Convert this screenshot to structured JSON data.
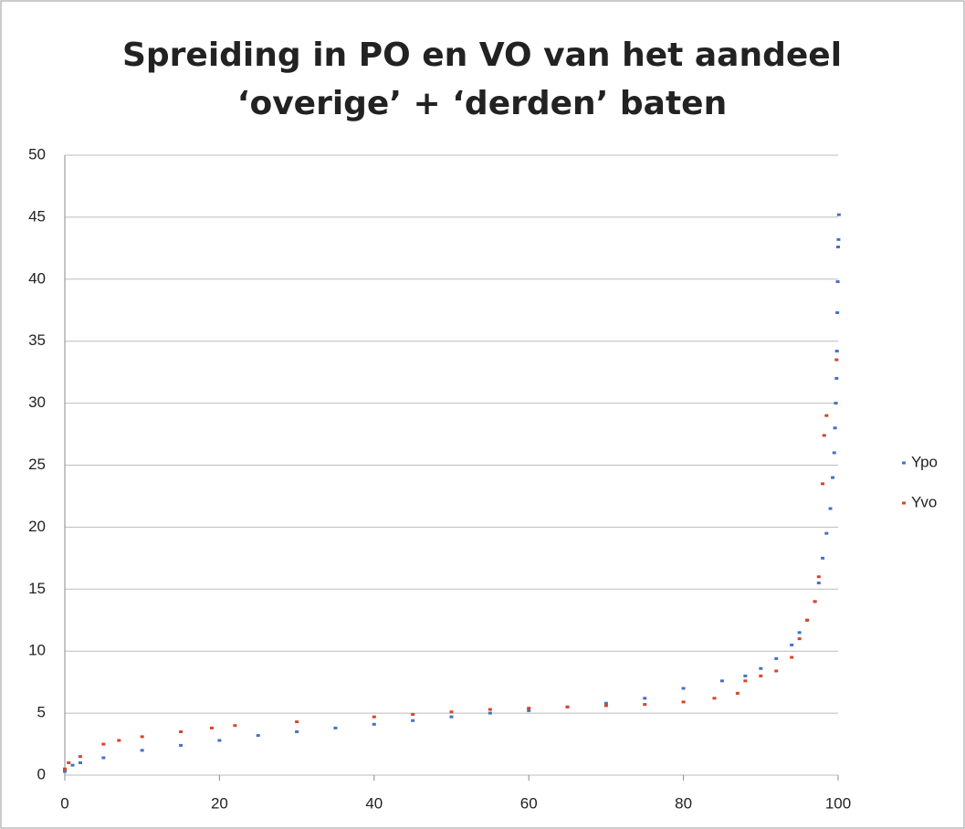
{
  "chart_data": {
    "type": "scatter",
    "title": "Spreiding in PO en VO van het aandeel",
    "subtitle": "‘overige’ + ‘derden’ baten",
    "xlim": [
      0,
      100
    ],
    "xticks": [
      0,
      20,
      40,
      60,
      80,
      100
    ],
    "ylim": [
      0,
      50
    ],
    "yticks": [
      0,
      5,
      10,
      15,
      20,
      25,
      30,
      35,
      40,
      45,
      50
    ],
    "grid": true,
    "legend": "right",
    "series": [
      {
        "name": "Ypo",
        "color": "#4472c4",
        "x": [
          0,
          1,
          2,
          5,
          10,
          15,
          20,
          25,
          30,
          35,
          40,
          45,
          50,
          55,
          60,
          65,
          70,
          75,
          80,
          85,
          88,
          90,
          92,
          94,
          95,
          96,
          97,
          97.5,
          98,
          98.5,
          99,
          99.3,
          99.5,
          99.6,
          99.7,
          99.8,
          99.85,
          99.9,
          99.95,
          100,
          100.05,
          100.1
        ],
        "values": [
          0.3,
          0.8,
          1.0,
          1.4,
          2.0,
          2.4,
          2.8,
          3.2,
          3.5,
          3.8,
          4.1,
          4.4,
          4.7,
          5.0,
          5.2,
          5.5,
          5.8,
          6.2,
          7.0,
          7.6,
          8.0,
          8.6,
          9.4,
          10.5,
          11.5,
          12.5,
          14.0,
          15.5,
          17.5,
          19.5,
          21.5,
          24,
          26,
          28,
          30,
          32,
          34.2,
          37.3,
          39.8,
          42.6,
          43.2,
          45.2
        ]
      },
      {
        "name": "Yvo",
        "color": "#d9442b",
        "x": [
          0,
          0.5,
          2,
          5,
          7,
          10,
          15,
          19,
          22,
          30,
          40,
          45,
          50,
          55,
          60,
          65,
          70,
          75,
          80,
          84,
          87,
          88,
          90,
          92,
          94,
          95,
          96,
          97,
          97.5,
          98,
          98.2,
          98.5,
          99.8
        ],
        "values": [
          0.5,
          1.0,
          1.5,
          2.5,
          2.8,
          3.1,
          3.5,
          3.8,
          4.0,
          4.3,
          4.7,
          4.9,
          5.1,
          5.3,
          5.4,
          5.5,
          5.6,
          5.7,
          5.9,
          6.2,
          6.6,
          7.6,
          8.0,
          8.4,
          9.5,
          11.0,
          12.5,
          14.0,
          16,
          23.5,
          27.4,
          29,
          33.5
        ]
      }
    ]
  }
}
